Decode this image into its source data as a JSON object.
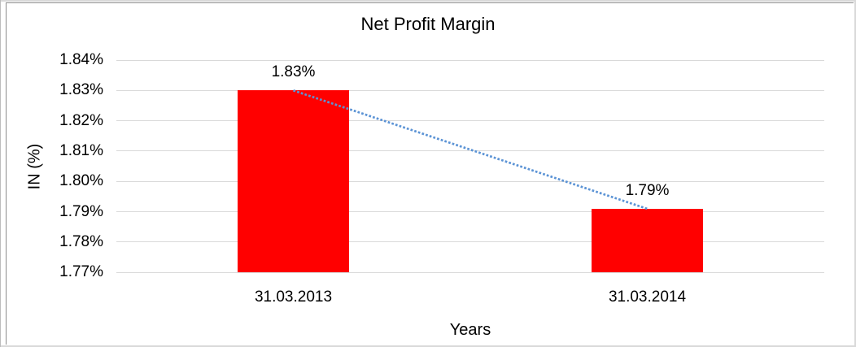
{
  "chart_data": {
    "type": "bar",
    "title": "Net Profit Margin",
    "xlabel": "Years",
    "ylabel": "IN (%)",
    "categories": [
      "31.03.2013",
      "31.03.2014"
    ],
    "series": [
      {
        "name": "Net Profit Margin",
        "color": "#ff0000",
        "values": [
          1.83,
          1.791
        ],
        "data_labels": [
          "1.83%",
          "1.79%"
        ]
      }
    ],
    "trendline": {
      "style": "dotted",
      "color": "#5b93d5",
      "from_value": 1.83,
      "to_value": 1.791
    },
    "y_axis": {
      "min": 1.77,
      "max": 1.84,
      "step": 0.01,
      "tick_labels": [
        "1.84%",
        "1.83%",
        "1.82%",
        "1.81%",
        "1.80%",
        "1.79%",
        "1.78%",
        "1.77%"
      ]
    },
    "x_axis": {
      "tick_labels": [
        "31.03.2013",
        "31.03.2014"
      ]
    },
    "legend": "none",
    "grid": true,
    "gridline_color": "#d9d9d9",
    "background": "#ffffff",
    "text_color": "#000000"
  }
}
